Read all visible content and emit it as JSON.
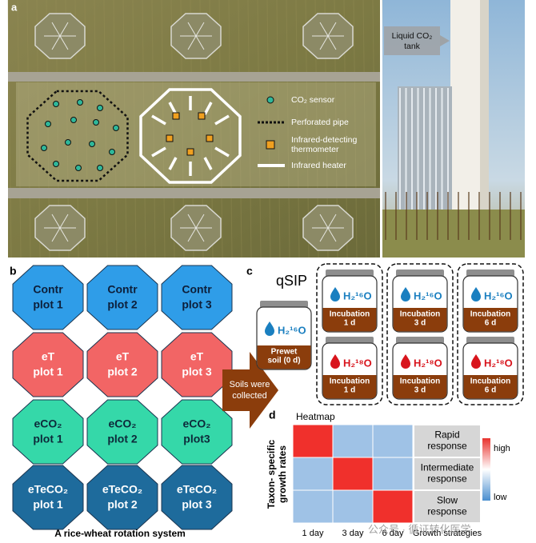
{
  "panel_a": {
    "letter": "a",
    "legend": [
      {
        "key": "sensor",
        "lines": [
          "CO₂ sensor"
        ]
      },
      {
        "key": "pipe",
        "lines": [
          "Perforated pipe"
        ]
      },
      {
        "key": "thermo",
        "lines": [
          "Infrared-detecting",
          "thermometer"
        ]
      },
      {
        "key": "heater",
        "lines": [
          "Infrared heater"
        ]
      }
    ],
    "tank_label": [
      "Liquid CO₂",
      "tank"
    ]
  },
  "panel_b": {
    "letter": "b",
    "groups": [
      {
        "name": "Contr",
        "plots": [
          "plot 1",
          "plot 2",
          "plot 3"
        ],
        "color": "#2f9de8",
        "text_color": "#0d1f3a"
      },
      {
        "name": "eT",
        "plots": [
          "plot 1",
          "plot 2",
          "plot 3"
        ],
        "color": "#f26565",
        "text_color": "#ffffff"
      },
      {
        "name": "eCO₂",
        "plots": [
          "plot 1",
          "plot 2",
          "plot3"
        ],
        "color": "#35d8a9",
        "text_color": "#0d2a3a"
      },
      {
        "name": "eTeCO₂",
        "plots": [
          "plot 1",
          "plot 2",
          "plot 3"
        ],
        "color": "#1e6b9c",
        "text_color": "#ffffff"
      }
    ],
    "caption": "A rice-wheat rotation system"
  },
  "arrow_text": [
    "Soils were",
    "collected"
  ],
  "panel_c": {
    "letter": "c",
    "title": "qSIP",
    "prewet": {
      "water": "H₂¹⁶O",
      "label": [
        "Prewet",
        "soil (0 d)"
      ]
    },
    "incubations": [
      {
        "label": [
          "Incubation",
          "1 d"
        ]
      },
      {
        "label": [
          "Incubation",
          "3 d"
        ]
      },
      {
        "label": [
          "Incubation",
          "6 d"
        ]
      }
    ],
    "rows": [
      {
        "water": "H₂¹⁶O",
        "color": "#1a7fc0"
      },
      {
        "water": "H₂¹⁸O",
        "color": "#d8141c"
      }
    ]
  },
  "panel_d": {
    "letter": "d",
    "title": "Heatmap",
    "ylabel": [
      "Taxon- specific",
      "growth rates"
    ],
    "cols": [
      "1 day",
      "3 day",
      "6 day"
    ],
    "strategy_label": "Growth strategies",
    "strategies": [
      [
        "Rapid",
        "response"
      ],
      [
        "Intermediate",
        "response"
      ],
      [
        "Slow",
        "response"
      ]
    ],
    "values": [
      [
        1,
        0,
        0
      ],
      [
        0,
        1,
        0
      ],
      [
        0,
        0,
        1
      ]
    ],
    "colorbar": {
      "high": "high",
      "low": "low"
    }
  },
  "watermark": "公众号 · 循证转化医学"
}
